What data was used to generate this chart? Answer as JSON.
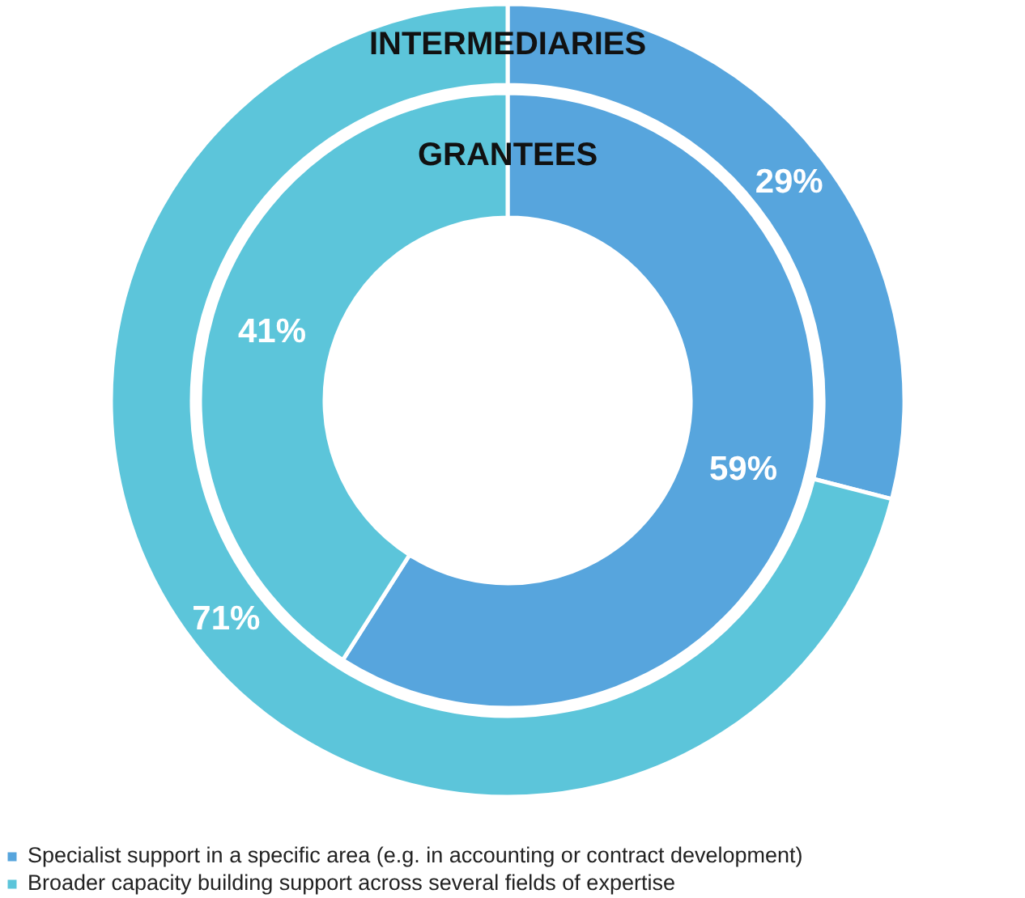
{
  "chart_data": {
    "type": "donut",
    "categories": [
      "Specialist support in a specific area (e.g. in accounting or contract development)",
      "Broader capacity building support across several fields of expertise"
    ],
    "colors": [
      "#57a5dd",
      "#5cc5da"
    ],
    "series": [
      {
        "name": "INTERMEDIARIES",
        "values": [
          29,
          71
        ],
        "value_labels": [
          "29%",
          "71%"
        ]
      },
      {
        "name": "GRANTEES",
        "values": [
          59,
          41
        ],
        "value_labels": [
          "59%",
          "41%"
        ]
      }
    ],
    "legend": "bottom"
  }
}
